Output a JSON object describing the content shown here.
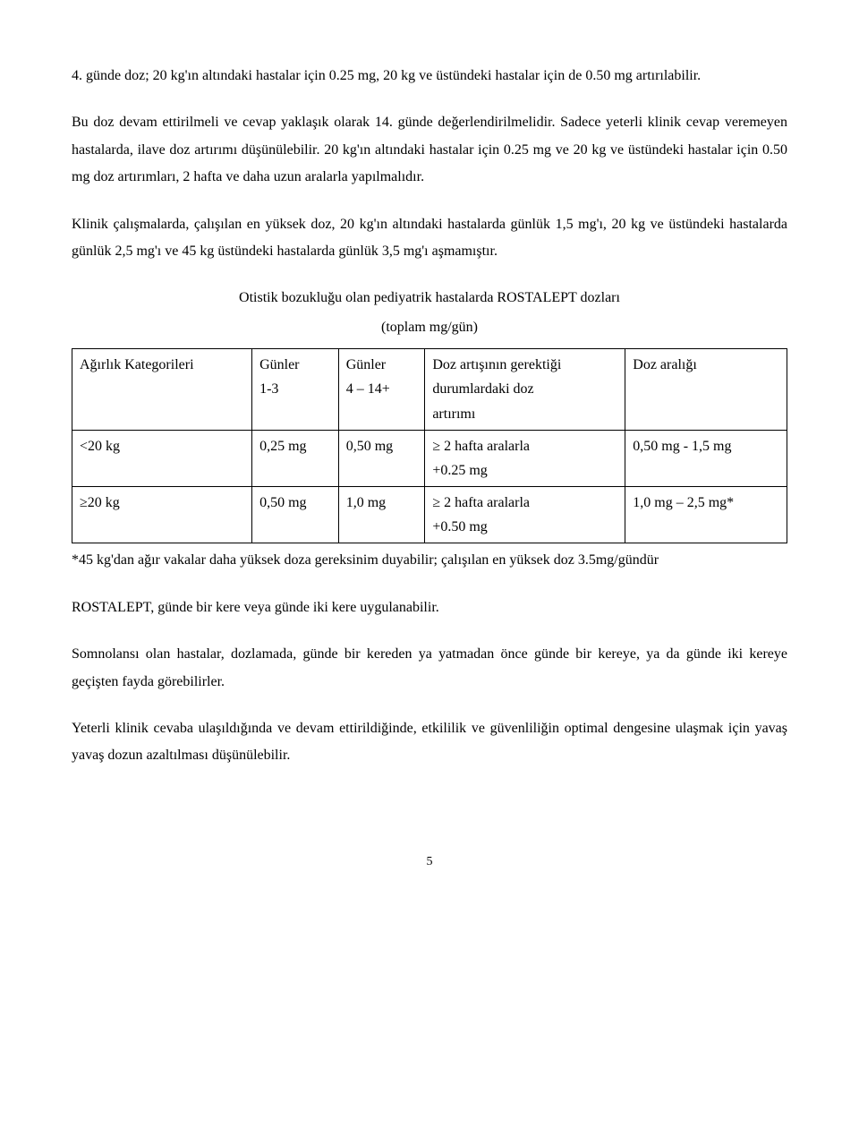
{
  "para1": "4. günde doz; 20 kg'ın altındaki hastalar için 0.25 mg, 20 kg ve üstündeki hastalar için de 0.50 mg artırılabilir.",
  "para2": "Bu doz devam ettirilmeli ve cevap yaklaşık olarak 14. günde değerlendirilmelidir. Sadece yeterli klinik cevap veremeyen hastalarda, ilave doz artırımı düşünülebilir. 20 kg'ın altındaki hastalar için 0.25 mg ve 20 kg ve üstündeki hastalar için 0.50 mg doz artırımları, 2 hafta ve daha uzun aralarla yapılmalıdır.",
  "para3": "Klinik çalışmalarda, çalışılan en yüksek doz, 20 kg'ın altındaki hastalarda günlük 1,5 mg'ı, 20 kg ve üstündeki hastalarda günlük 2,5 mg'ı ve 45 kg üstündeki hastalarda günlük 3,5 mg'ı aşmamıştır.",
  "table_title": "Otistik bozukluğu olan pediyatrik hastalarda ROSTALEPT dozları",
  "table_subtitle": "(toplam mg/gün)",
  "table": {
    "columns": [
      {
        "lines": [
          "Ağırlık Kategorileri"
        ]
      },
      {
        "lines": [
          "Günler",
          "1-3"
        ]
      },
      {
        "lines": [
          "Günler",
          "4 – 14+"
        ]
      },
      {
        "lines": [
          "Doz artışının gerektiği",
          "durumlardaki doz",
          "artırımı"
        ]
      },
      {
        "lines": [
          "Doz aralığı"
        ]
      }
    ],
    "rows": [
      {
        "c0": "<20 kg",
        "c1": "0,25 mg",
        "c2": "0,50 mg",
        "c3": [
          "≥ 2 hafta aralarla",
          " +0.25 mg"
        ],
        "c4": "0,50 mg - 1,5 mg"
      },
      {
        "c0": "≥20 kg",
        "c1": "0,50 mg",
        "c2": "1,0 mg",
        "c3": [
          "≥ 2 hafta aralarla",
          "+0.50 mg"
        ],
        "c4": "1,0 mg – 2,5 mg*"
      }
    ]
  },
  "footnote": "*45 kg'dan ağır vakalar daha yüksek doza gereksinim duyabilir; çalışılan en yüksek doz 3.5mg/gündür",
  "para4": "ROSTALEPT, günde bir kere veya günde iki kere uygulanabilir.",
  "para5": "Somnolansı olan hastalar, dozlamada, günde bir kereden ya yatmadan önce günde bir kereye, ya da günde iki kereye geçişten fayda görebilirler.",
  "para6": "Yeterli klinik cevaba ulaşıldığında ve devam ettirildiğinde, etkililik ve güvenliliğin optimal dengesine ulaşmak için yavaş yavaş dozun azaltılması düşünülebilir.",
  "page_number": "5"
}
